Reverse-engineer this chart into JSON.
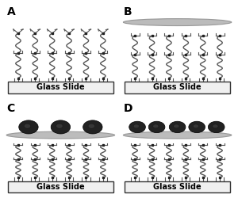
{
  "title": "",
  "panels": [
    "A",
    "B",
    "C",
    "D"
  ],
  "glass_label": "Glass Slide",
  "bg_color": "#ffffff",
  "glass_fill": "#f0f0f0",
  "glass_edge": "#333333",
  "chain_color": "#555555",
  "dot_color": "#222222",
  "membrane_color": "#aaaaaa",
  "membrane_alpha": 0.7,
  "cell_color": "#222222",
  "panel_label_fontsize": 10,
  "glass_label_fontsize": 7
}
